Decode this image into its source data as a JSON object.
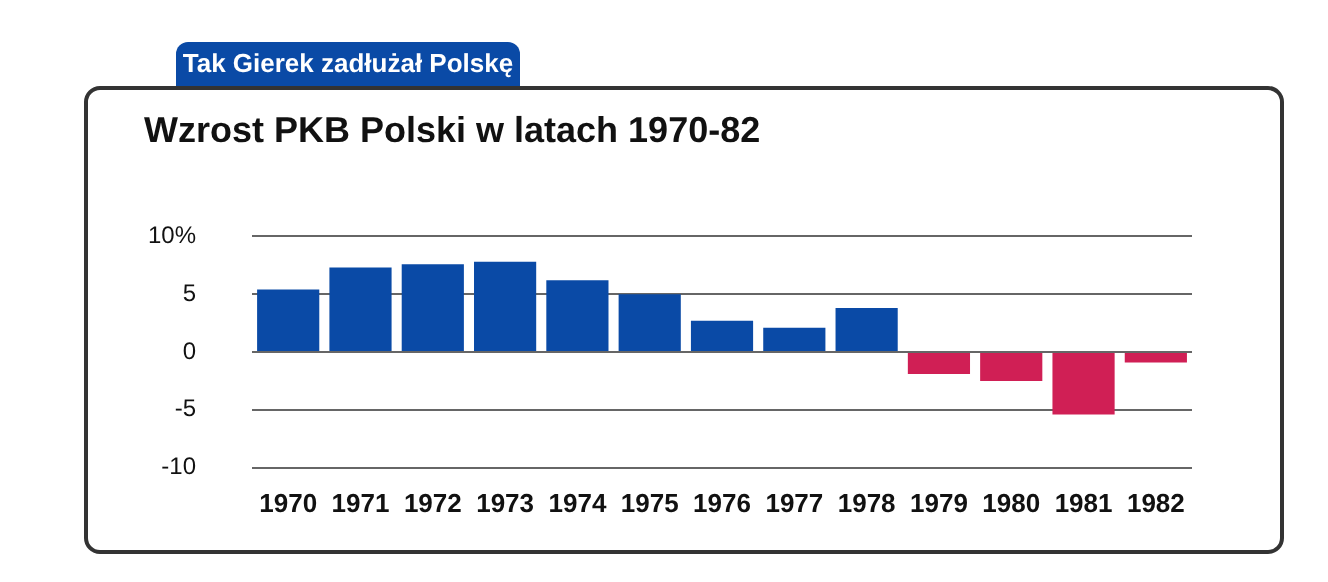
{
  "chart_data": {
    "type": "bar",
    "subtitle": "Tak Gierek zadłużał Polskę",
    "title": "Wzrost PKB Polski w latach 1970-82",
    "categories": [
      "1970",
      "1971",
      "1972",
      "1973",
      "1974",
      "1975",
      "1976",
      "1977",
      "1978",
      "1979",
      "1980",
      "1981",
      "1982"
    ],
    "values": [
      5.4,
      7.3,
      7.6,
      7.8,
      6.2,
      5.0,
      2.7,
      2.1,
      3.8,
      -1.9,
      -2.5,
      -5.4,
      -0.9
    ],
    "colors": [
      "#0a4aa6",
      "#0a4aa6",
      "#0a4aa6",
      "#0a4aa6",
      "#0a4aa6",
      "#0a4aa6",
      "#0a4aa6",
      "#0a4aa6",
      "#0a4aa6",
      "#d01f55",
      "#d01f55",
      "#d01f55",
      "#d01f55"
    ],
    "ylim": [
      -10,
      10
    ],
    "yticks": [
      {
        "value": 10,
        "label": "10%"
      },
      5,
      0,
      -5,
      -10
    ],
    "grid": "y",
    "legend": false
  }
}
